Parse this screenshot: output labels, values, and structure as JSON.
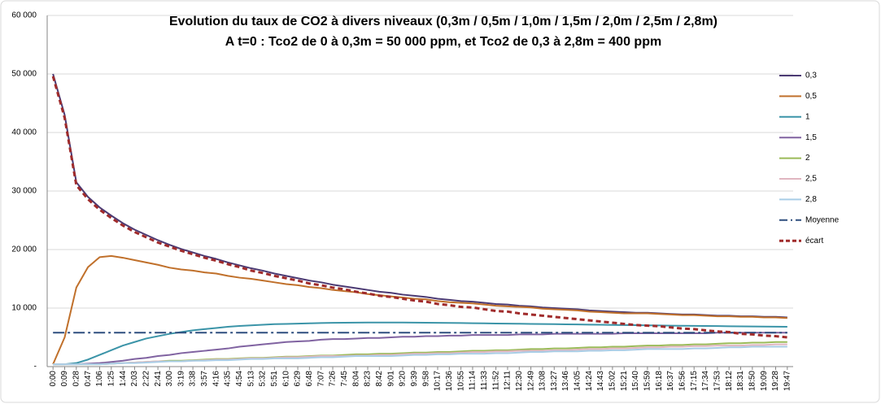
{
  "chart_data": {
    "type": "line",
    "title": "Evolution du taux de CO2 à divers niveaux (0,3m / 0,5m / 1,0m / 1,5m / 2,0m / 2,5m / 2,8m)",
    "subtitle": "A t=0 :  Tco2  de 0 à 0,3m = 50 000 ppm, et  Tco2 de 0,3 à 2,8m = 400 ppm",
    "categories": [
      "0:00",
      "0:09",
      "0:28",
      "0:47",
      "1:06",
      "1:25",
      "1:44",
      "2:03",
      "2:22",
      "2:41",
      "3:00",
      "3:19",
      "3:38",
      "3:57",
      "4:16",
      "4:35",
      "4:54",
      "5:13",
      "5:32",
      "5:51",
      "6:10",
      "6:29",
      "6:48",
      "7:07",
      "7:26",
      "7:45",
      "8:04",
      "8:23",
      "8:42",
      "9:01",
      "9:20",
      "9:39",
      "9:58",
      "10:17",
      "10:36",
      "10:55",
      "11:14",
      "11:33",
      "11:52",
      "12:11",
      "12:30",
      "12:49",
      "13:08",
      "13:27",
      "13:46",
      "14:05",
      "14:24",
      "14:43",
      "15:02",
      "15:21",
      "15:40",
      "15:59",
      "16:18",
      "16:37",
      "16:56",
      "17:15",
      "17:34",
      "17:53",
      "18:12",
      "18:31",
      "18:50",
      "19:09",
      "19:28",
      "19:47"
    ],
    "ylim": [
      0,
      60000
    ],
    "yticks": [
      {
        "value": 0,
        "label": "-"
      },
      {
        "value": 10000,
        "label": "10 000"
      },
      {
        "value": 20000,
        "label": "20 000"
      },
      {
        "value": 30000,
        "label": "30 000"
      },
      {
        "value": 40000,
        "label": "40 000"
      },
      {
        "value": 50000,
        "label": "50 000"
      },
      {
        "value": 60000,
        "label": "60 000"
      }
    ],
    "grid": true,
    "legend": "right",
    "series": [
      {
        "name": "0,3",
        "color": "#4b3a73",
        "dash": "solid",
        "values": [
          50000,
          43000,
          31500,
          29000,
          27200,
          25800,
          24500,
          23400,
          22500,
          21600,
          20800,
          20100,
          19500,
          18900,
          18400,
          17800,
          17300,
          16800,
          16400,
          15900,
          15500,
          15100,
          14700,
          14400,
          14000,
          13700,
          13400,
          13100,
          12800,
          12600,
          12300,
          12100,
          11900,
          11600,
          11400,
          11200,
          11100,
          10900,
          10700,
          10600,
          10400,
          10300,
          10100,
          10000,
          9900,
          9800,
          9600,
          9500,
          9400,
          9300,
          9200,
          9200,
          9100,
          9000,
          8900,
          8900,
          8800,
          8700,
          8700,
          8600,
          8600,
          8500,
          8500,
          8400
        ]
      },
      {
        "name": "0,5",
        "color": "#c0702b",
        "dash": "solid",
        "values": [
          400,
          5000,
          13500,
          17000,
          18700,
          18900,
          18600,
          18200,
          17800,
          17400,
          16900,
          16600,
          16400,
          16100,
          15900,
          15500,
          15200,
          15000,
          14700,
          14400,
          14100,
          13900,
          13600,
          13400,
          13100,
          12900,
          12700,
          12400,
          12200,
          12000,
          11800,
          11600,
          11500,
          11200,
          11000,
          10900,
          10800,
          10600,
          10400,
          10300,
          10200,
          10100,
          9900,
          9800,
          9700,
          9600,
          9400,
          9300,
          9200,
          9100,
          9100,
          9100,
          9000,
          8900,
          8800,
          8800,
          8700,
          8600,
          8600,
          8500,
          8500,
          8400,
          8400,
          8300
        ]
      },
      {
        "name": "1",
        "color": "#3b94a8",
        "dash": "solid",
        "values": [
          400,
          400,
          600,
          1200,
          2000,
          2800,
          3600,
          4200,
          4800,
          5200,
          5600,
          5900,
          6200,
          6400,
          6600,
          6800,
          6950,
          7050,
          7150,
          7250,
          7300,
          7350,
          7400,
          7450,
          7480,
          7500,
          7520,
          7530,
          7540,
          7540,
          7530,
          7520,
          7500,
          7480,
          7460,
          7440,
          7420,
          7400,
          7370,
          7350,
          7320,
          7300,
          7270,
          7250,
          7220,
          7200,
          7170,
          7150,
          7120,
          7100,
          7080,
          7050,
          7030,
          7000,
          6980,
          6960,
          6940,
          6920,
          6900,
          6880,
          6860,
          6840,
          6820,
          6800
        ]
      },
      {
        "name": "1,5",
        "color": "#8063a1",
        "dash": "solid",
        "values": [
          400,
          400,
          400,
          500,
          600,
          800,
          1000,
          1300,
          1500,
          1800,
          2000,
          2300,
          2500,
          2700,
          2900,
          3100,
          3400,
          3600,
          3800,
          4000,
          4200,
          4300,
          4400,
          4600,
          4700,
          4700,
          4800,
          4900,
          4900,
          5000,
          5100,
          5100,
          5200,
          5200,
          5300,
          5300,
          5400,
          5400,
          5400,
          5400,
          5500,
          5500,
          5500,
          5600,
          5600,
          5600,
          5600,
          5600,
          5600,
          5700,
          5700,
          5700,
          5700,
          5700,
          5700,
          5700,
          5700,
          5800,
          5800,
          5800,
          5800,
          5800,
          5800,
          5800
        ]
      },
      {
        "name": "2",
        "color": "#9bbb59",
        "dash": "solid",
        "values": [
          400,
          400,
          400,
          400,
          400,
          500,
          600,
          700,
          800,
          900,
          1000,
          1000,
          1100,
          1200,
          1300,
          1300,
          1400,
          1500,
          1500,
          1600,
          1700,
          1700,
          1800,
          1900,
          1900,
          2000,
          2100,
          2100,
          2200,
          2200,
          2300,
          2400,
          2400,
          2500,
          2500,
          2600,
          2700,
          2700,
          2800,
          2800,
          2900,
          3000,
          3000,
          3100,
          3100,
          3200,
          3300,
          3300,
          3400,
          3400,
          3500,
          3600,
          3600,
          3700,
          3700,
          3800,
          3800,
          3900,
          4000,
          4000,
          4100,
          4100,
          4200,
          4200
        ]
      },
      {
        "name": "2,5",
        "color": "#e0b6c0",
        "dash": "solid",
        "values": [
          400,
          400,
          400,
          400,
          400,
          500,
          600,
          700,
          800,
          900,
          900,
          900,
          1000,
          1100,
          1200,
          1200,
          1300,
          1400,
          1400,
          1500,
          1600,
          1600,
          1700,
          1800,
          1800,
          1800,
          1900,
          1900,
          2000,
          2000,
          2100,
          2200,
          2200,
          2300,
          2300,
          2400,
          2500,
          2500,
          2600,
          2600,
          2700,
          2700,
          2700,
          2800,
          2800,
          2900,
          3000,
          3000,
          3100,
          3100,
          3200,
          3300,
          3300,
          3400,
          3400,
          3500,
          3500,
          3600,
          3600,
          3600,
          3700,
          3700,
          3800,
          3800
        ]
      },
      {
        "name": "2,8",
        "color": "#a9cde6",
        "dash": "solid",
        "values": [
          400,
          400,
          400,
          400,
          400,
          500,
          600,
          600,
          700,
          800,
          900,
          900,
          1000,
          1000,
          1100,
          1100,
          1200,
          1300,
          1300,
          1400,
          1400,
          1400,
          1500,
          1600,
          1600,
          1700,
          1800,
          1800,
          1800,
          1800,
          1900,
          2000,
          2000,
          2100,
          2100,
          2200,
          2200,
          2200,
          2300,
          2300,
          2400,
          2500,
          2500,
          2600,
          2600,
          2600,
          2700,
          2700,
          2800,
          2800,
          2900,
          3000,
          3000,
          3000,
          3000,
          3100,
          3100,
          3200,
          3300,
          3300,
          3400,
          3400,
          3400,
          3400
        ]
      },
      {
        "name": "Moyenne",
        "color": "#2e4f7f",
        "dash": "dashdot",
        "values": [
          5800,
          5800,
          5800,
          5800,
          5800,
          5800,
          5800,
          5800,
          5800,
          5800,
          5800,
          5800,
          5800,
          5800,
          5800,
          5800,
          5800,
          5800,
          5800,
          5800,
          5800,
          5800,
          5800,
          5800,
          5800,
          5800,
          5800,
          5800,
          5800,
          5800,
          5800,
          5800,
          5800,
          5800,
          5800,
          5800,
          5800,
          5800,
          5800,
          5800,
          5800,
          5800,
          5800,
          5800,
          5800,
          5800,
          5800,
          5800,
          5800,
          5800,
          5800,
          5800,
          5800,
          5800,
          5800,
          5800,
          5800,
          5800,
          5800,
          5800,
          5800,
          5800,
          5800,
          5800
        ]
      },
      {
        "name": "écart",
        "color": "#a02b2b",
        "dash": "dash",
        "values": [
          49600,
          42500,
          31000,
          28600,
          26800,
          25400,
          24100,
          23000,
          22100,
          21200,
          20500,
          19800,
          19200,
          18600,
          18100,
          17500,
          17000,
          16400,
          16000,
          15500,
          15100,
          14700,
          14200,
          13900,
          13500,
          13200,
          12800,
          12500,
          12100,
          11900,
          11600,
          11300,
          11100,
          10700,
          10500,
          10200,
          10100,
          9800,
          9500,
          9400,
          9100,
          8900,
          8700,
          8500,
          8300,
          8100,
          7900,
          7700,
          7500,
          7300,
          7100,
          7000,
          6900,
          6700,
          6500,
          6400,
          6200,
          6000,
          5900,
          5600,
          5500,
          5300,
          5200,
          5000
        ]
      }
    ]
  }
}
